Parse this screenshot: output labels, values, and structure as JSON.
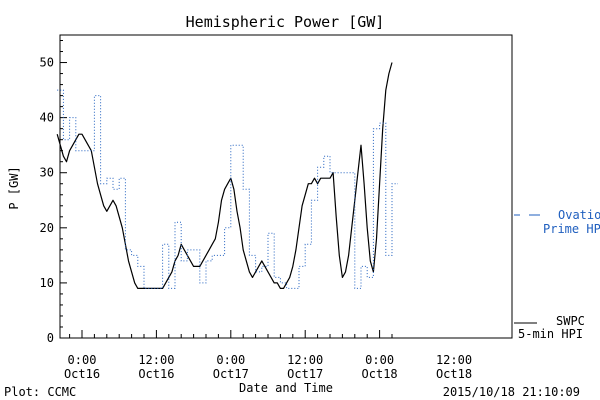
{
  "chart_data": {
    "type": "line",
    "title": "Hemispheric Power [GW]",
    "xlabel": "Date and Time",
    "ylabel": "P [GW]",
    "ylim": [
      0,
      55
    ],
    "y_ticks": [
      0,
      10,
      20,
      30,
      40,
      50
    ],
    "xlim": [
      -4,
      50
    ],
    "x_ticks": [
      {
        "x": 0,
        "time": "0:00",
        "date": "Oct16"
      },
      {
        "x": 12,
        "time": "12:00",
        "date": "Oct16"
      },
      {
        "x": 24,
        "time": "0:00",
        "date": "Oct17"
      },
      {
        "x": 36,
        "time": "12:00",
        "date": "Oct17"
      },
      {
        "x": 48,
        "time": "0:00",
        "date": "Oct18"
      },
      {
        "x": 60,
        "time": "12:00",
        "date": "Oct18"
      }
    ],
    "grid": false,
    "colors": {
      "swpc": "#000000",
      "ovation": "#1f5fbf"
    },
    "series": [
      {
        "name": "SWPC 5-min HPI",
        "style": "solid",
        "color": "#000000",
        "x": [
          -4.0,
          -3.5,
          -3.0,
          -2.5,
          -2.0,
          -1.5,
          -1.0,
          -0.5,
          0.0,
          0.5,
          1.0,
          1.5,
          2.0,
          2.5,
          3.0,
          3.5,
          4.0,
          4.5,
          5.0,
          5.5,
          6.0,
          6.5,
          7.0,
          7.5,
          8.0,
          8.5,
          9.0,
          9.5,
          10.0,
          10.5,
          11.0,
          11.5,
          12.0,
          12.5,
          13.0,
          13.5,
          14.0,
          14.5,
          15.0,
          15.5,
          16.0,
          16.5,
          17.0,
          17.5,
          18.0,
          18.5,
          19.0,
          19.5,
          20.0,
          20.5,
          21.0,
          21.5,
          22.0,
          22.5,
          23.0,
          23.5,
          24.0,
          24.5,
          25.0,
          25.5,
          26.0,
          26.5,
          27.0,
          27.5,
          28.0,
          28.5,
          29.0,
          29.5,
          30.0,
          30.5,
          31.0,
          31.5,
          32.0,
          32.5,
          33.0,
          33.5,
          34.0,
          34.5,
          35.0,
          35.5,
          36.0,
          36.5,
          37.0,
          37.5,
          38.0,
          38.5,
          39.0,
          39.5,
          40.0,
          40.5,
          41.0,
          41.5,
          42.0,
          42.5,
          43.0,
          43.5,
          44.0,
          44.5,
          45.0,
          45.5,
          46.0,
          46.5,
          47.0,
          47.5,
          48.0,
          48.5,
          49.0,
          49.5,
          50.0
        ],
        "y": [
          37,
          35,
          33,
          32,
          34,
          35,
          36,
          37,
          37,
          36,
          35,
          34,
          31,
          28,
          26,
          24,
          23,
          24,
          25,
          24,
          22,
          20,
          17,
          14,
          12,
          10,
          9,
          9,
          9,
          9,
          9,
          9,
          9,
          9,
          9,
          10,
          11,
          12,
          14,
          15,
          17,
          16,
          15,
          14,
          13,
          13,
          13,
          14,
          15,
          16,
          17,
          18,
          21,
          25,
          27,
          28,
          29,
          27,
          23,
          20,
          16,
          14,
          12,
          11,
          12,
          13,
          14,
          13,
          12,
          11,
          10,
          10,
          9,
          9,
          10,
          11,
          13,
          16,
          20,
          24,
          26,
          28,
          28,
          29,
          28,
          29,
          29,
          29,
          29,
          30,
          22,
          15,
          11,
          12,
          15,
          20,
          25,
          30,
          35,
          28,
          20,
          14,
          12,
          18,
          28,
          38,
          45,
          48,
          50
        ]
      },
      {
        "name": "Ovation Prime HPI",
        "style": "dotted",
        "color": "#1f5fbf",
        "x": [
          -4.0,
          -3.0,
          -2.0,
          -1.0,
          0.0,
          1.0,
          2.0,
          3.0,
          4.0,
          5.0,
          6.0,
          7.0,
          8.0,
          9.0,
          10.0,
          11.0,
          12.0,
          13.0,
          14.0,
          15.0,
          16.0,
          17.0,
          18.0,
          19.0,
          20.0,
          21.0,
          22.0,
          23.0,
          24.0,
          25.0,
          26.0,
          27.0,
          28.0,
          29.0,
          30.0,
          31.0,
          32.0,
          33.0,
          34.0,
          35.0,
          36.0,
          37.0,
          38.0,
          39.0,
          40.0,
          41.0,
          42.0,
          43.0,
          44.0,
          45.0,
          46.0,
          47.0,
          48.0,
          49.0,
          50.0
        ],
        "y": [
          45,
          36,
          40,
          34,
          34,
          34,
          44,
          28,
          29,
          27,
          29,
          16,
          15,
          13,
          9,
          9,
          9,
          17,
          9,
          21,
          14,
          16,
          16,
          10,
          14,
          15,
          15,
          20,
          35,
          35,
          27,
          15,
          12,
          13,
          19,
          11,
          10,
          9,
          9,
          13,
          17,
          25,
          31,
          33,
          30,
          30,
          30,
          30,
          9,
          13,
          11,
          38,
          39,
          15,
          28
        ]
      }
    ]
  },
  "legend": {
    "ovation_line1": "Ovation",
    "ovation_line2": "Prime HPI",
    "swpc_line1": "SWPC",
    "swpc_line2": "5-min HPI"
  },
  "footer": {
    "plot_credit": "Plot: CCMC",
    "timestamp": "2015/10/18 21:10:09"
  }
}
